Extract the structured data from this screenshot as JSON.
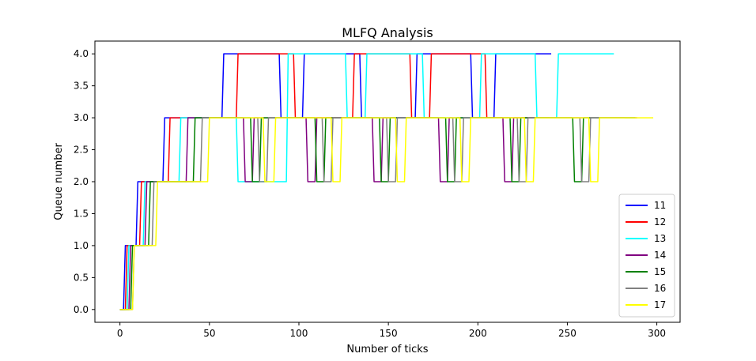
{
  "chart_data": {
    "type": "line",
    "title": "MLFQ Analysis",
    "xlabel": "Number of ticks",
    "ylabel": "Queue number",
    "xlim": [
      -14,
      313
    ],
    "ylim": [
      -0.2,
      4.2
    ],
    "xticks": [
      0,
      50,
      100,
      150,
      200,
      250,
      300
    ],
    "yticks": [
      0.0,
      0.5,
      1.0,
      1.5,
      2.0,
      2.5,
      3.0,
      3.5,
      4.0
    ],
    "xtick_labels": [
      "0",
      "50",
      "100",
      "150",
      "200",
      "250",
      "300"
    ],
    "ytick_labels": [
      "0.0",
      "0.5",
      "1.0",
      "1.5",
      "2.0",
      "2.5",
      "3.0",
      "3.5",
      "4.0"
    ],
    "grid": false,
    "legend_position": "lower right",
    "series": [
      {
        "name": "11",
        "color": "#0000ff",
        "x": [
          0,
          2,
          3,
          9,
          10,
          24,
          25,
          57,
          58,
          89,
          90,
          102,
          103,
          134,
          135,
          165,
          166,
          196,
          197,
          209,
          210,
          241
        ],
        "y": [
          0,
          0,
          1,
          1,
          2,
          2,
          3,
          3,
          4,
          4,
          3,
          3,
          4,
          4,
          3,
          3,
          4,
          4,
          3,
          3,
          4,
          4
        ]
      },
      {
        "name": "12",
        "color": "#ff0000",
        "x": [
          0,
          3,
          4,
          11,
          12,
          27,
          28,
          65,
          66,
          97,
          98,
          130,
          131,
          162,
          163,
          173,
          174,
          204,
          205,
          240
        ],
        "y": [
          0,
          0,
          1,
          1,
          2,
          2,
          3,
          3,
          4,
          4,
          3,
          3,
          4,
          4,
          3,
          3,
          4,
          4,
          3,
          3
        ]
      },
      {
        "name": "13",
        "color": "#00ffff",
        "x": [
          0,
          4,
          5,
          13,
          14,
          33,
          34,
          65,
          66,
          93,
          94,
          126,
          127,
          137,
          138,
          169,
          170,
          201,
          202,
          232,
          233,
          244,
          245,
          276
        ],
        "y": [
          0,
          0,
          1,
          1,
          2,
          2,
          3,
          3,
          2,
          2,
          4,
          4,
          3,
          3,
          4,
          4,
          3,
          3,
          4,
          4,
          3,
          3,
          4,
          4
        ]
      },
      {
        "name": "14",
        "color": "#800080",
        "x": [
          0,
          5,
          6,
          14,
          15,
          37,
          38,
          69,
          70,
          74,
          75,
          104,
          105,
          109,
          110,
          141,
          142,
          146,
          147,
          178,
          179,
          183,
          184,
          214,
          215,
          219,
          220,
          289
        ],
        "y": [
          0,
          0,
          1,
          1,
          2,
          2,
          3,
          3,
          2,
          2,
          3,
          3,
          2,
          2,
          3,
          3,
          2,
          2,
          3,
          3,
          2,
          2,
          3,
          3,
          2,
          2,
          3,
          3
        ]
      },
      {
        "name": "15",
        "color": "#008000",
        "x": [
          0,
          6,
          7,
          16,
          17,
          41,
          42,
          73,
          74,
          78,
          79,
          109,
          110,
          114,
          115,
          145,
          146,
          150,
          151,
          182,
          183,
          187,
          188,
          218,
          219,
          223,
          224,
          253,
          254,
          258,
          259,
          288
        ],
        "y": [
          0,
          0,
          1,
          1,
          2,
          2,
          3,
          3,
          2,
          2,
          3,
          3,
          2,
          2,
          3,
          3,
          2,
          2,
          3,
          3,
          2,
          2,
          3,
          3,
          2,
          2,
          3,
          3,
          2,
          2,
          3,
          3
        ]
      },
      {
        "name": "16",
        "color": "#808080",
        "x": [
          0,
          7,
          8,
          18,
          19,
          45,
          46,
          77,
          78,
          82,
          83,
          113,
          114,
          118,
          119,
          149,
          150,
          154,
          155,
          186,
          187,
          191,
          192,
          222,
          223,
          227,
          228,
          257,
          258,
          262,
          263,
          282
        ],
        "y": [
          0,
          0,
          1,
          1,
          2,
          2,
          3,
          3,
          2,
          2,
          3,
          3,
          2,
          2,
          3,
          3,
          2,
          2,
          3,
          3,
          2,
          2,
          3,
          3,
          2,
          2,
          3,
          3,
          2,
          2,
          3,
          3
        ]
      },
      {
        "name": "17",
        "color": "#ffff00",
        "x": [
          0,
          7,
          8,
          20,
          21,
          49,
          50,
          80,
          81,
          86,
          87,
          118,
          119,
          123,
          124,
          154,
          155,
          159,
          160,
          190,
          191,
          195,
          196,
          226,
          227,
          231,
          232,
          262,
          263,
          267,
          268,
          298
        ],
        "y": [
          0,
          0,
          1,
          1,
          2,
          2,
          3,
          3,
          2,
          2,
          3,
          3,
          2,
          2,
          3,
          3,
          2,
          2,
          3,
          3,
          2,
          2,
          3,
          3,
          2,
          2,
          3,
          3,
          2,
          2,
          3,
          3
        ]
      }
    ]
  }
}
